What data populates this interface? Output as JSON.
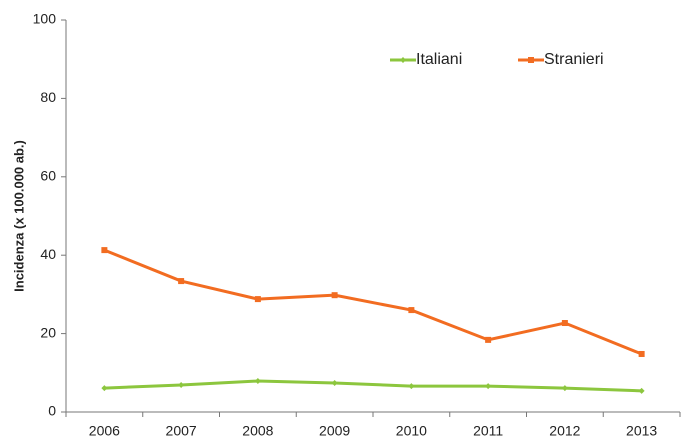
{
  "chart_data": {
    "type": "line",
    "y_label": "Incidenza (x 100.000 ab.)",
    "categories": [
      "2006",
      "2007",
      "2008",
      "2009",
      "2010",
      "2011",
      "2012",
      "2013"
    ],
    "series": [
      {
        "name": "Italiani",
        "color": "#8cc63e",
        "values": [
          6.1,
          6.9,
          7.9,
          7.4,
          6.6,
          6.6,
          6.1,
          5.4
        ]
      },
      {
        "name": "Stranieri",
        "color": "#f26c21",
        "values": [
          41.3,
          33.4,
          28.8,
          29.8,
          26.0,
          18.4,
          22.7,
          14.8
        ]
      }
    ],
    "ylim": [
      0,
      100
    ],
    "yticks": [
      0,
      20,
      40,
      60,
      80,
      100
    ],
    "grid": false,
    "legend": "top"
  }
}
